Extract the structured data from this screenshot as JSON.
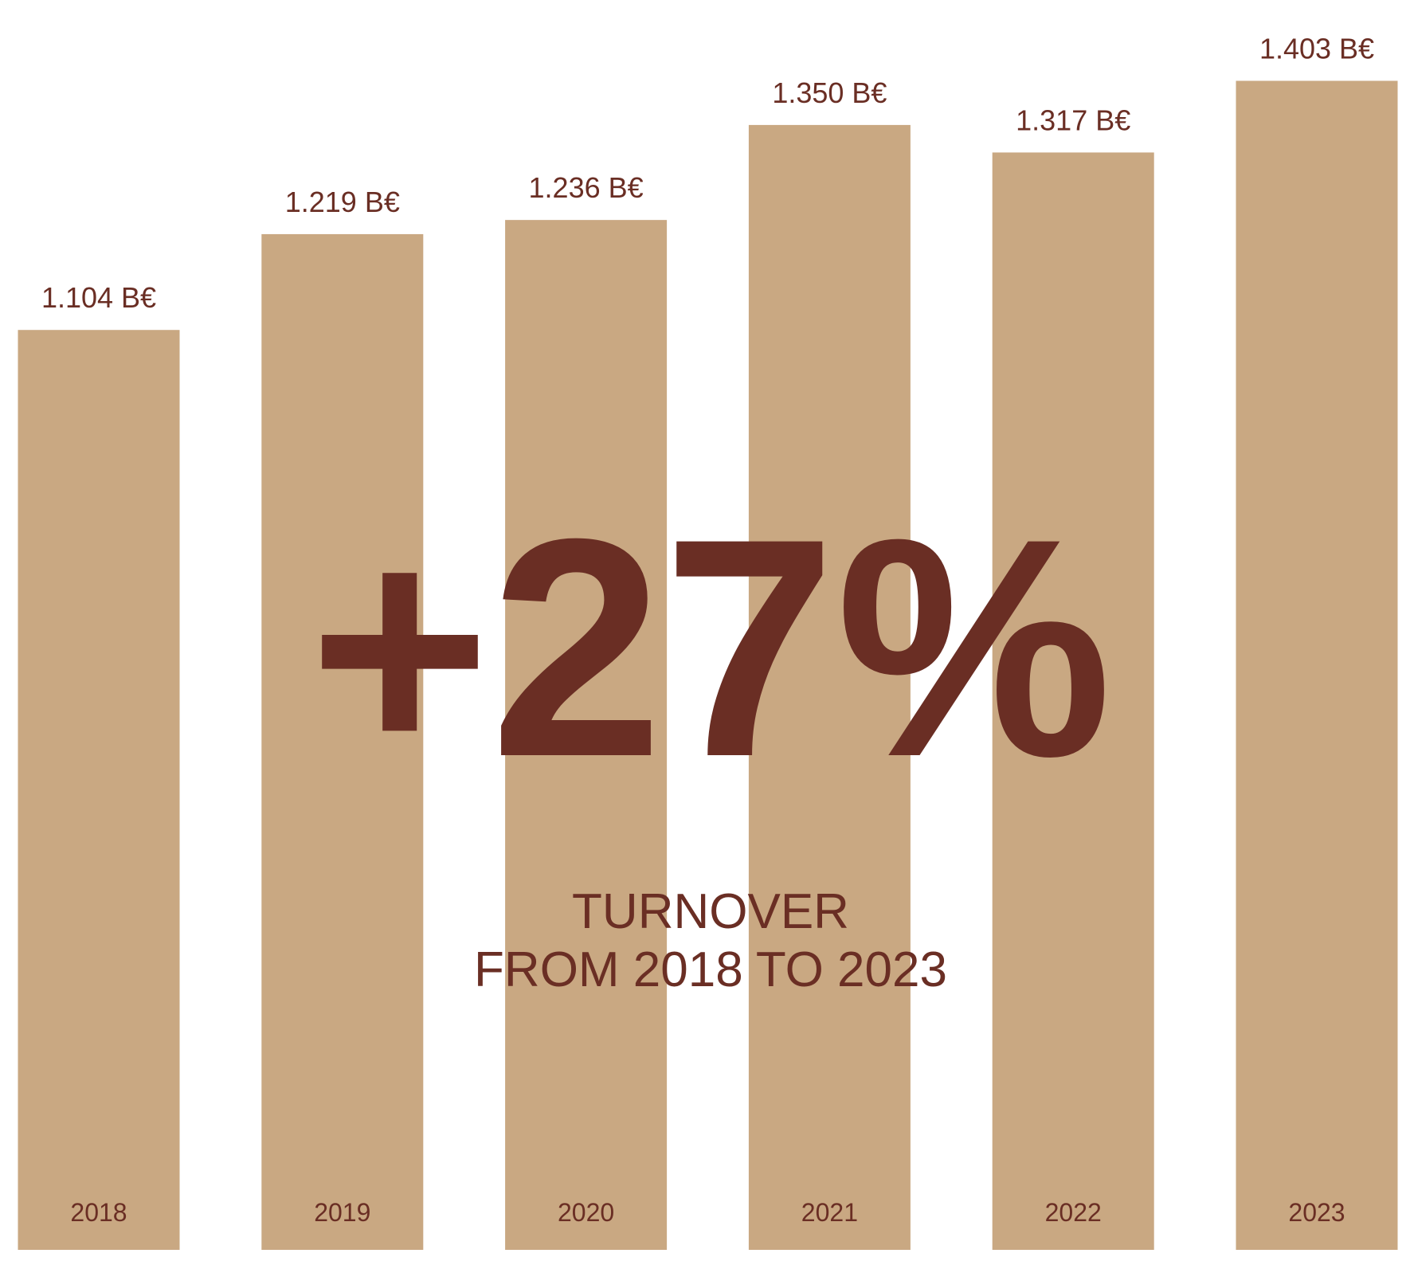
{
  "chart_data": {
    "type": "bar",
    "categories": [
      "2018",
      "2019",
      "2020",
      "2021",
      "2022",
      "2023"
    ],
    "values": [
      1.104,
      1.219,
      1.236,
      1.35,
      1.317,
      1.403
    ],
    "value_labels": [
      "1.104 B€",
      "1.219 B€",
      "1.236 B€",
      "1.350 B€",
      "1.317 B€",
      "1.403 B€"
    ],
    "color": "#c9a882",
    "ylim": [
      0,
      1.5
    ],
    "headline": "+27%",
    "subtitle": [
      "TURNOVER",
      "FROM 2018 TO 2023"
    ]
  }
}
